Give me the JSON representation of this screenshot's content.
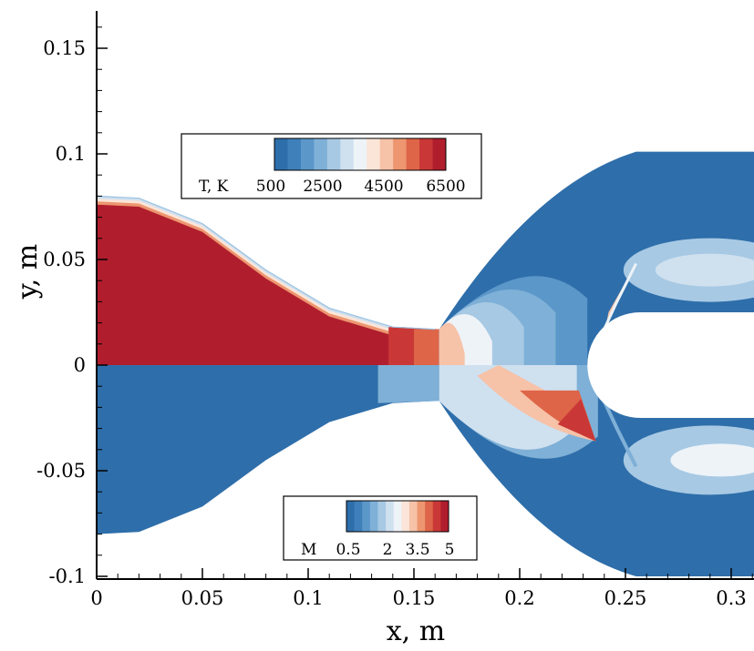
{
  "chart_data": {
    "type": "heatmap",
    "title": "",
    "xlabel": "x, m",
    "ylabel": "y, m",
    "xlim": [
      0,
      0.31
    ],
    "ylim": [
      -0.1,
      0.17
    ],
    "x_ticks": [
      "0",
      "0.05",
      "0.1",
      "0.15",
      "0.2",
      "0.25",
      "0.3"
    ],
    "y_ticks": [
      "-0.1",
      "-0.05",
      "0",
      "0.05",
      "0.1",
      "0.15"
    ],
    "x_tick_values": [
      0,
      0.05,
      0.1,
      0.15,
      0.2,
      0.25,
      0.3
    ],
    "y_tick_values": [
      -0.1,
      -0.05,
      0,
      0.05,
      0.1,
      0.15
    ],
    "upper_half": {
      "field": "Temperature",
      "legend_title": "T, K",
      "legend_ticks": [
        "500",
        "2500",
        "4500",
        "6500"
      ],
      "range": [
        0,
        7500
      ]
    },
    "lower_half": {
      "field": "Mach number",
      "legend_title": "M",
      "legend_ticks": [
        "0.5",
        "2",
        "3.5",
        "5"
      ],
      "range": [
        0,
        5.5
      ]
    },
    "colormap": [
      "#2e6eaa",
      "#3f80ba",
      "#5b97c9",
      "#7fb0d7",
      "#a7c9e4",
      "#cfe0ef",
      "#eef3f7",
      "#fbe5d8",
      "#f6c2a8",
      "#ed9670",
      "#de6548",
      "#c93836",
      "#b01e2e"
    ],
    "nozzle_wall": [
      [
        0,
        0.08
      ],
      [
        0.02,
        0.079
      ],
      [
        0.05,
        0.067
      ],
      [
        0.08,
        0.045
      ],
      [
        0.11,
        0.027
      ],
      [
        0.14,
        0.018
      ],
      [
        0.16,
        0.017
      ]
    ],
    "jet_boundary": [
      [
        0.162,
        0.017
      ],
      [
        0.18,
        0.04
      ],
      [
        0.2,
        0.065
      ],
      [
        0.23,
        0.087
      ],
      [
        0.26,
        0.1
      ]
    ],
    "domain_top": 0.101,
    "domain_bottom": -0.1,
    "body": {
      "nose_x": 0.232,
      "radius": 0.025
    },
    "shock": [
      [
        0.255,
        0.048
      ],
      [
        0.246,
        0.03
      ],
      [
        0.239,
        0.015
      ],
      [
        0.237,
        0
      ]
    ]
  }
}
